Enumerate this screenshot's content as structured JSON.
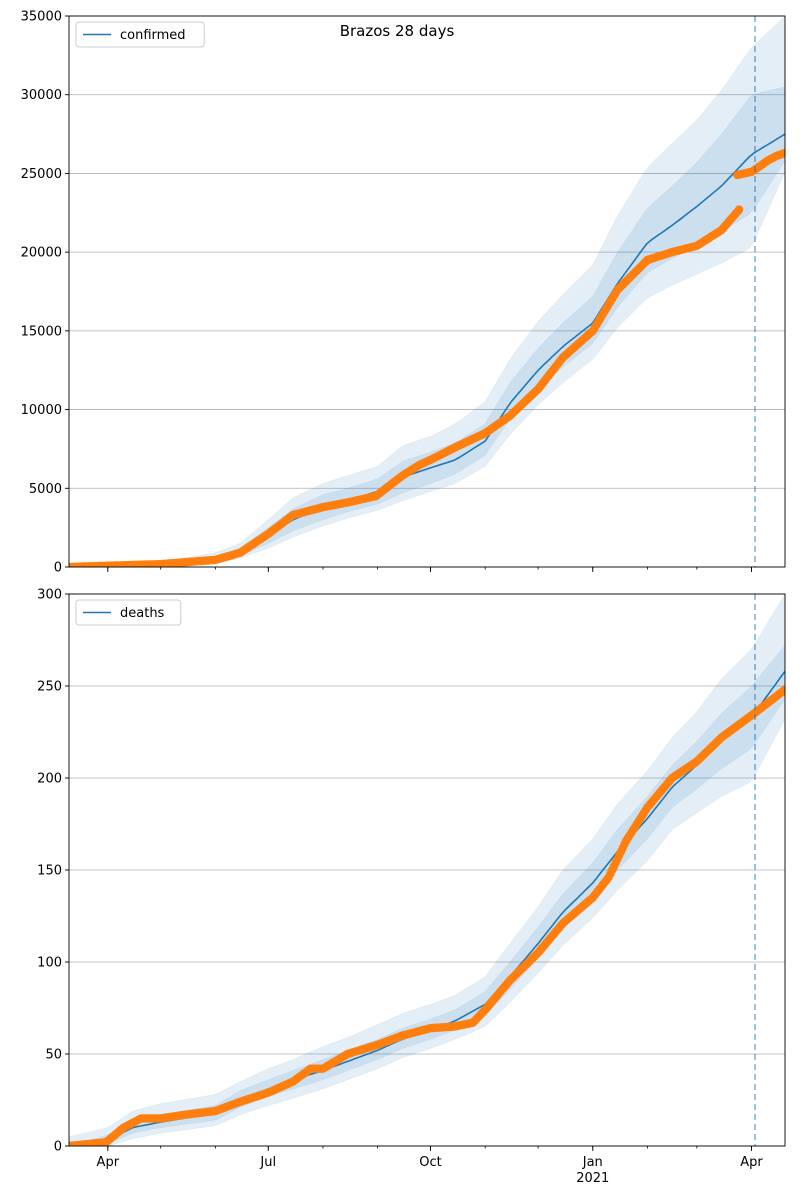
{
  "figure": {
    "title": "Brazos 28 days"
  },
  "colors": {
    "model_line": "#1f77b4",
    "band_fill": "#1f77b4",
    "observed": "#ff7f0e",
    "grid": "#b0b0b0",
    "forecast_marker": "#1f77b4"
  },
  "chart_data": [
    {
      "type": "line",
      "title": "",
      "legend": {
        "placement": "upper-left",
        "entries": [
          "confirmed"
        ]
      },
      "grid": {
        "y": true,
        "x": false
      },
      "x_axis": {
        "kind": "date",
        "range": [
          "2020-03-10",
          "2021-04-20"
        ],
        "ticks": [
          {
            "date": "2020-04-01",
            "label": "Apr",
            "sublabel": ""
          },
          {
            "date": "2020-07-01",
            "label": "Jul",
            "sublabel": ""
          },
          {
            "date": "2020-10-01",
            "label": "Oct",
            "sublabel": ""
          },
          {
            "date": "2021-01-01",
            "label": "Jan",
            "sublabel": ""
          },
          {
            "date": "2021-04-01",
            "label": "Apr",
            "sublabel": ""
          }
        ]
      },
      "y_axis": {
        "range": [
          0,
          35000
        ],
        "ticks": [
          {
            "value": 0,
            "label": "0"
          },
          {
            "value": 5000,
            "label": "5000"
          },
          {
            "value": 10000,
            "label": "10000"
          },
          {
            "value": 15000,
            "label": "15000"
          },
          {
            "value": 20000,
            "label": "20000"
          },
          {
            "value": 25000,
            "label": "25000"
          },
          {
            "value": 30000,
            "label": "30000"
          },
          {
            "value": 35000,
            "label": "35000"
          }
        ]
      },
      "forecast_start": "2021-04-03",
      "model": {
        "name": "confirmed",
        "x": [
          "2020-03-10",
          "2020-04-01",
          "2020-05-01",
          "2020-06-01",
          "2020-06-15",
          "2020-07-01",
          "2020-07-15",
          "2020-08-01",
          "2020-08-15",
          "2020-09-01",
          "2020-09-15",
          "2020-10-01",
          "2020-10-15",
          "2020-11-01",
          "2020-11-15",
          "2020-12-01",
          "2020-12-15",
          "2021-01-01",
          "2021-01-15",
          "2021-02-01",
          "2021-02-15",
          "2021-03-01",
          "2021-03-15",
          "2021-04-01",
          "2021-04-20"
        ],
        "y": [
          0,
          50,
          150,
          500,
          900,
          2000,
          3000,
          3800,
          4200,
          4800,
          5700,
          6300,
          6800,
          8000,
          10400,
          12500,
          14000,
          15500,
          18000,
          20600,
          21700,
          22900,
          24200,
          26200,
          27500
        ],
        "bands": [
          {
            "lower": [
              0,
              30,
              100,
              350,
              700,
              1500,
              2300,
              3000,
              3500,
              4000,
              4700,
              5300,
              5900,
              7100,
              9400,
              11300,
              12700,
              14200,
              16500,
              18700,
              19600,
              20400,
              21300,
              22500,
              25800
            ],
            "upper": [
              0,
              90,
              230,
              700,
              1200,
              2500,
              3700,
              4600,
              5000,
              5600,
              6700,
              7300,
              7900,
              9100,
              11700,
              13900,
              15500,
              17200,
              20000,
              22800,
              24200,
              25700,
              27500,
              30000,
              30500
            ]
          },
          {
            "lower": [
              0,
              20,
              70,
              250,
              550,
              1200,
              1900,
              2600,
              3100,
              3600,
              4200,
              4800,
              5300,
              6400,
              8400,
              10300,
              11700,
              13200,
              15200,
              17100,
              17900,
              18600,
              19300,
              20300,
              25100
            ],
            "upper": [
              0,
              130,
              320,
              900,
              1500,
              3000,
              4400,
              5300,
              5800,
              6400,
              7700,
              8300,
              9100,
              10500,
              13200,
              15600,
              17300,
              19200,
              22300,
              25400,
              26900,
              28400,
              30300,
              33000,
              35000
            ]
          }
        ]
      },
      "observed": {
        "x": [
          "2020-03-10",
          "2020-04-01",
          "2020-05-01",
          "2020-06-01",
          "2020-06-15",
          "2020-07-01",
          "2020-07-15",
          "2020-08-01",
          "2020-08-15",
          "2020-08-31",
          "2020-09-15",
          "2020-09-25",
          "2020-10-01",
          "2020-10-15",
          "2020-11-01",
          "2020-11-15",
          "2020-12-01",
          "2020-12-15",
          "2021-01-01",
          "2021-01-15",
          "2021-02-01",
          "2021-02-15",
          "2021-03-01",
          "2021-03-15",
          "2021-03-25"
        ],
        "y": [
          0,
          80,
          180,
          450,
          900,
          2100,
          3300,
          3800,
          4100,
          4500,
          5800,
          6500,
          6800,
          7600,
          8500,
          9600,
          11300,
          13300,
          15000,
          17600,
          19500,
          20000,
          20400,
          21400,
          22700
        ]
      },
      "observed_forecast": {
        "x": [
          "2021-03-24",
          "2021-04-01",
          "2021-04-05",
          "2021-04-10",
          "2021-04-15",
          "2021-04-20"
        ],
        "y": [
          24900,
          25100,
          25400,
          25800,
          26100,
          26300
        ]
      }
    },
    {
      "type": "line",
      "title": "",
      "legend": {
        "placement": "upper-left",
        "entries": [
          "deaths"
        ]
      },
      "grid": {
        "y": true,
        "x": false
      },
      "x_axis": {
        "kind": "date",
        "range": [
          "2020-03-10",
          "2021-04-20"
        ],
        "ticks": [
          {
            "date": "2020-04-01",
            "label": "Apr",
            "sublabel": ""
          },
          {
            "date": "2020-07-01",
            "label": "Jul",
            "sublabel": ""
          },
          {
            "date": "2020-10-01",
            "label": "Oct",
            "sublabel": ""
          },
          {
            "date": "2021-01-01",
            "label": "Jan",
            "sublabel": "2021"
          },
          {
            "date": "2021-04-01",
            "label": "Apr",
            "sublabel": ""
          }
        ]
      },
      "y_axis": {
        "range": [
          0,
          300
        ],
        "ticks": [
          {
            "value": 0,
            "label": "0"
          },
          {
            "value": 50,
            "label": "50"
          },
          {
            "value": 100,
            "label": "100"
          },
          {
            "value": 150,
            "label": "150"
          },
          {
            "value": 200,
            "label": "200"
          },
          {
            "value": 250,
            "label": "250"
          },
          {
            "value": 300,
            "label": "300"
          }
        ]
      },
      "forecast_start": "2021-04-03",
      "model": {
        "name": "deaths",
        "x": [
          "2020-03-10",
          "2020-04-01",
          "2020-04-15",
          "2020-05-01",
          "2020-06-01",
          "2020-06-15",
          "2020-07-01",
          "2020-07-15",
          "2020-08-01",
          "2020-08-15",
          "2020-09-01",
          "2020-09-15",
          "2020-10-01",
          "2020-10-15",
          "2020-11-01",
          "2020-11-15",
          "2020-12-01",
          "2020-12-15",
          "2021-01-01",
          "2021-01-15",
          "2021-02-01",
          "2021-02-15",
          "2021-03-01",
          "2021-03-15",
          "2021-04-01",
          "2021-04-20"
        ],
        "y": [
          0,
          3,
          10,
          13,
          18,
          25,
          31,
          36,
          41,
          46,
          52,
          58,
          63,
          68,
          77,
          92,
          110,
          127,
          143,
          160,
          178,
          195,
          207,
          220,
          233,
          258
        ],
        "bands": [
          {
            "lower": [
              0,
              1,
              7,
              10,
              14,
              21,
              27,
              31,
              36,
              41,
              47,
              53,
              58,
              63,
              71,
              85,
              102,
              118,
              134,
              150,
              167,
              184,
              194,
              205,
              216,
              243
            ],
            "upper": [
              0,
              6,
              14,
              17,
              22,
              30,
              36,
              41,
              47,
              52,
              58,
              64,
              69,
              74,
              84,
              100,
              119,
              137,
              154,
              172,
              190,
              207,
              220,
              235,
              250,
              272
            ]
          },
          {
            "lower": [
              0,
              0,
              4,
              7,
              11,
              17,
              22,
              26,
              31,
              36,
              42,
              48,
              53,
              58,
              65,
              78,
              94,
              109,
              124,
              139,
              155,
              172,
              181,
              190,
              198,
              232
            ],
            "upper": [
              5,
              10,
              19,
              23,
              28,
              35,
              42,
              47,
              54,
              59,
              66,
              72,
              77,
              82,
              92,
              110,
              130,
              150,
              167,
              186,
              204,
              222,
              236,
              254,
              270,
              300
            ]
          }
        ]
      },
      "observed": {
        "x": [
          "2020-03-10",
          "2020-03-31",
          "2020-04-10",
          "2020-04-20",
          "2020-05-01",
          "2020-05-15",
          "2020-06-01",
          "2020-06-15",
          "2020-07-01",
          "2020-07-15",
          "2020-07-25",
          "2020-08-01",
          "2020-08-15",
          "2020-09-01",
          "2020-09-15",
          "2020-10-01",
          "2020-10-15",
          "2020-10-25",
          "2020-11-01",
          "2020-11-15",
          "2020-12-01",
          "2020-12-15",
          "2021-01-01",
          "2021-01-10",
          "2021-01-20",
          "2021-02-01",
          "2021-02-15",
          "2021-03-01",
          "2021-03-15",
          "2021-04-01",
          "2021-04-20"
        ],
        "y": [
          0,
          2,
          10,
          15,
          15,
          17,
          19,
          24,
          29,
          35,
          42,
          42,
          50,
          55,
          60,
          64,
          65,
          67,
          74,
          90,
          105,
          121,
          135,
          146,
          166,
          184,
          200,
          209,
          222,
          234,
          248
        ]
      }
    }
  ]
}
